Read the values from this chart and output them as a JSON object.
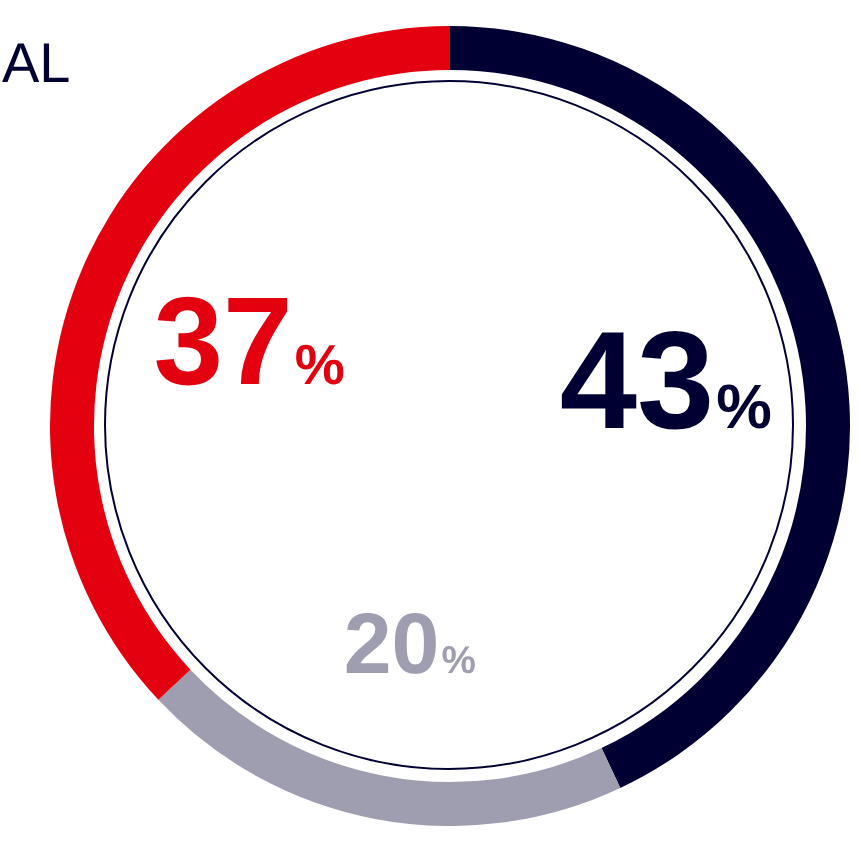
{
  "chart_data": {
    "type": "donut",
    "title": "AL",
    "categories": [
      null,
      null,
      null
    ],
    "values": [
      43,
      20,
      37
    ],
    "colors": [
      "#000033",
      "#9e9eb0",
      "#e3000f"
    ],
    "value_labels": [
      "43%",
      "20%",
      "37%"
    ],
    "legend": false
  }
}
